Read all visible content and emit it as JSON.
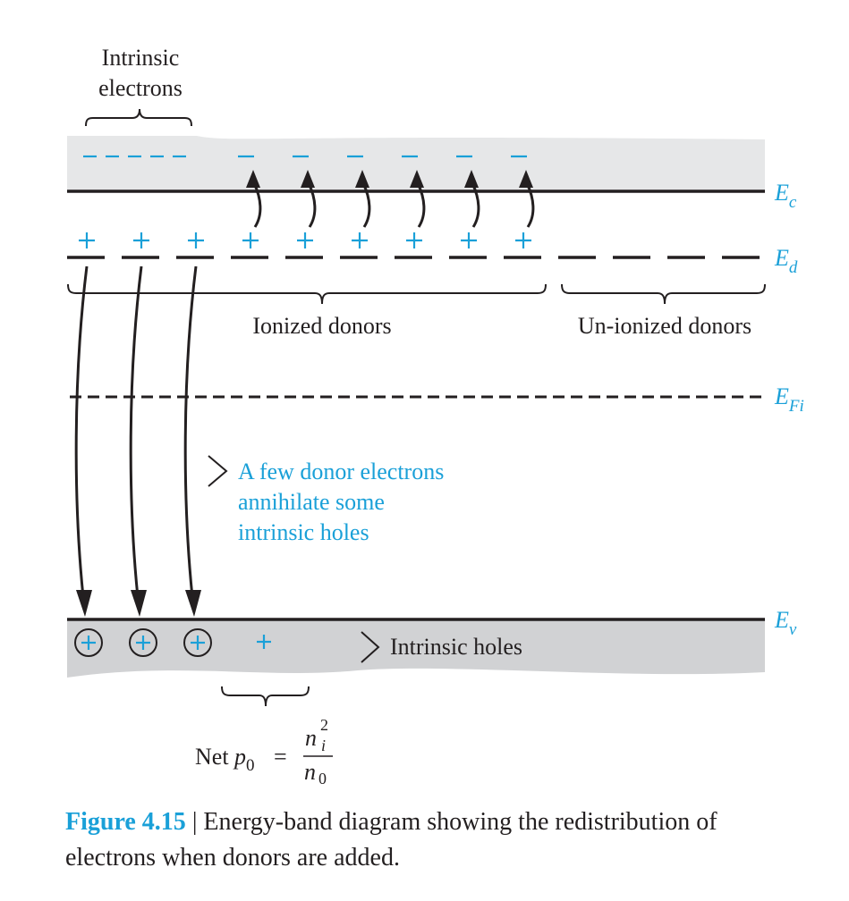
{
  "labels": {
    "intrinsic_electrons_line1": "Intrinsic",
    "intrinsic_electrons_line2": "electrons",
    "ec_main": "E",
    "ec_sub": "c",
    "ed_main": "E",
    "ed_sub": "d",
    "efi_main": "E",
    "efi_sub": "Fi",
    "ev_main": "E",
    "ev_sub": "v",
    "ionized_donors": "Ionized donors",
    "unionized_donors": "Un-ionized donors",
    "few_donors_line1": "A few donor electrons",
    "few_donors_line2": "annihilate some",
    "few_donors_line3": "intrinsic holes",
    "intrinsic_holes": "Intrinsic holes",
    "net_prefix": "Net ",
    "net_p": "p",
    "net_p_sub": "0",
    "equals": "=",
    "num_n": "n",
    "num_sup": "2",
    "num_sub": "i",
    "den_n": "n",
    "den_sub": "0"
  },
  "caption": {
    "figure_label": "Figure 4.15",
    "separator": " | ",
    "text": "Energy-band diagram showing the redistribution of electrons when donors are added."
  },
  "colors": {
    "accent": "#1aa0d8",
    "ink": "#231f20",
    "conduction_band": "#e6e7e8",
    "valence_band": "#d1d2d4"
  }
}
